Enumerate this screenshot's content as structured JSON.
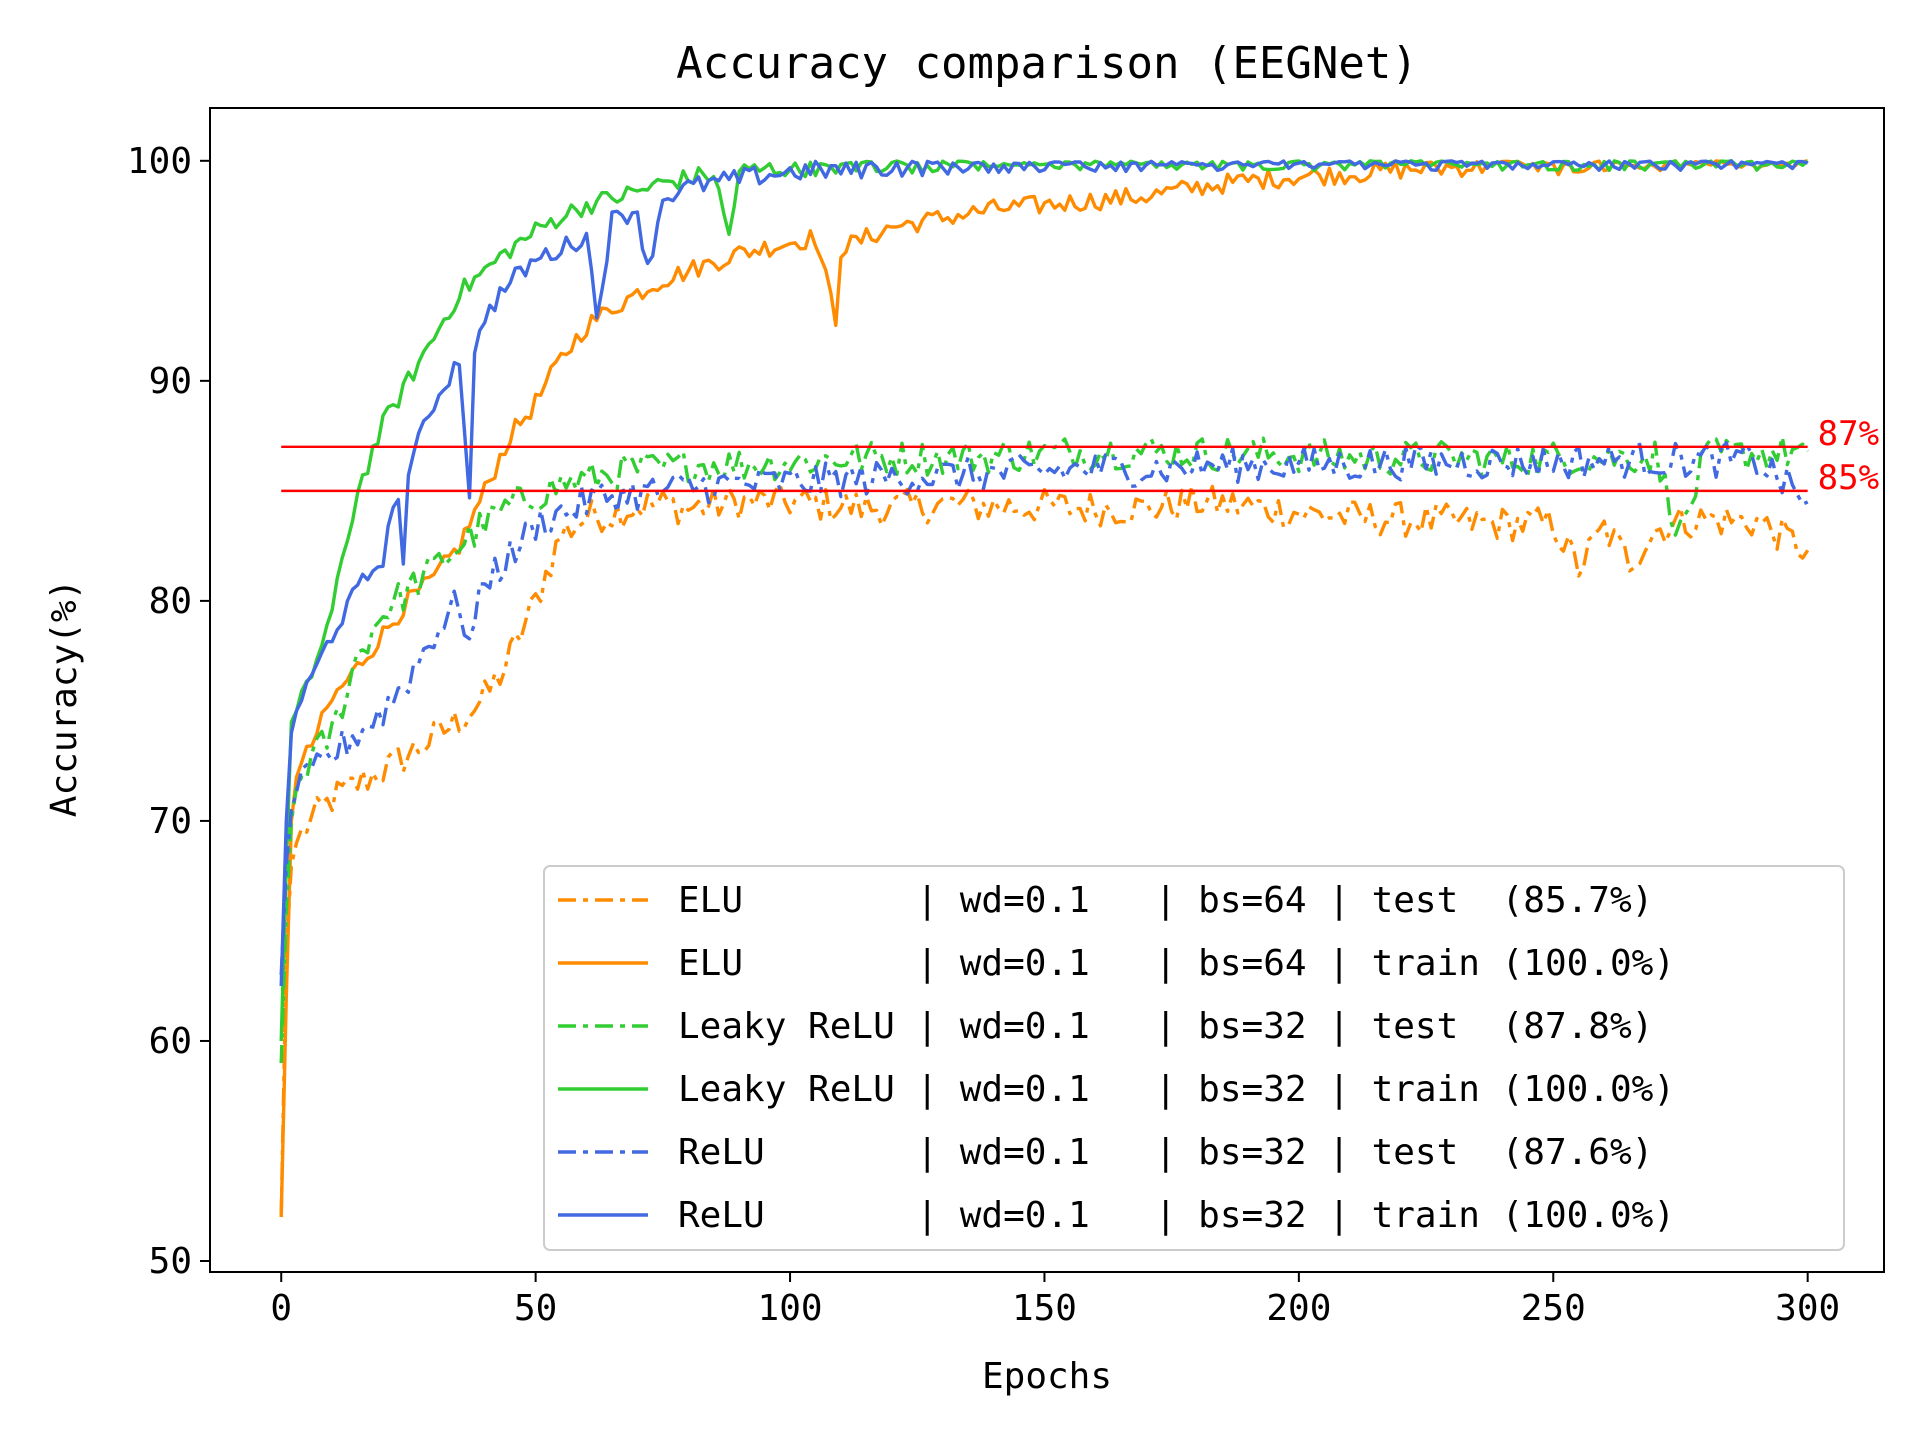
{
  "chart_data": {
    "type": "line",
    "title": "Accuracy comparison (EEGNet)",
    "xlabel": "Epochs",
    "ylabel": "Accuracy(%)",
    "xlim": [
      -14,
      315
    ],
    "ylim": [
      49.5,
      102.4
    ],
    "x_ticks": [
      0,
      50,
      100,
      150,
      200,
      250,
      300
    ],
    "y_ticks": [
      50,
      60,
      70,
      80,
      90,
      100
    ],
    "grid": false,
    "legend_position": "lower-right",
    "reference_lines": [
      {
        "y": 87,
        "label": "87%",
        "color": "#ff0000"
      },
      {
        "y": 85,
        "label": "85%",
        "color": "#ff0000"
      }
    ],
    "series": [
      {
        "name": "ELU        | wd=0.1   | bs=64 | test  (85.7%)",
        "color": "#ff8c00",
        "dash": "dashdot",
        "points": [
          [
            0,
            52
          ],
          [
            1,
            64
          ],
          [
            2,
            68
          ],
          [
            3,
            69
          ],
          [
            5,
            69.8
          ],
          [
            8,
            70.5
          ],
          [
            10,
            71
          ],
          [
            15,
            71.7
          ],
          [
            20,
            72.3
          ],
          [
            25,
            73
          ],
          [
            30,
            73.8
          ],
          [
            35,
            74.6
          ],
          [
            40,
            75.6
          ],
          [
            44,
            77
          ],
          [
            48,
            79
          ],
          [
            50,
            80
          ],
          [
            55,
            83
          ],
          [
            60,
            83.8
          ],
          [
            65,
            84
          ],
          [
            70,
            84.3
          ],
          [
            75,
            84.4
          ],
          [
            80,
            84.2
          ],
          [
            90,
            84.5
          ],
          [
            100,
            84.5
          ],
          [
            110,
            84.3
          ],
          [
            120,
            84.2
          ],
          [
            130,
            84.4
          ],
          [
            140,
            84.3
          ],
          [
            150,
            84.3
          ],
          [
            160,
            84.2
          ],
          [
            170,
            84.2
          ],
          [
            180,
            84.5
          ],
          [
            190,
            84.3
          ],
          [
            200,
            84
          ],
          [
            210,
            83.8
          ],
          [
            220,
            83.7
          ],
          [
            230,
            83.6
          ],
          [
            240,
            83.5
          ],
          [
            250,
            83.5
          ],
          [
            255,
            81.5
          ],
          [
            260,
            83.3
          ],
          [
            265,
            81.8
          ],
          [
            270,
            83.2
          ],
          [
            275,
            83.6
          ],
          [
            280,
            83.7
          ],
          [
            290,
            83.6
          ],
          [
            300,
            82.3
          ]
        ]
      },
      {
        "name": "ELU        | wd=0.1   | bs=64 | train (100.0%)",
        "color": "#ff8c00",
        "dash": "solid",
        "points": [
          [
            0,
            52
          ],
          [
            1,
            62
          ],
          [
            2,
            70
          ],
          [
            3,
            72
          ],
          [
            5,
            73
          ],
          [
            10,
            75.5
          ],
          [
            15,
            77
          ],
          [
            20,
            78.5
          ],
          [
            25,
            80
          ],
          [
            30,
            81
          ],
          [
            35,
            82.5
          ],
          [
            40,
            85
          ],
          [
            45,
            87.5
          ],
          [
            50,
            89
          ],
          [
            55,
            91
          ],
          [
            60,
            92.5
          ],
          [
            65,
            93.3
          ],
          [
            70,
            94
          ],
          [
            75,
            94.6
          ],
          [
            80,
            95
          ],
          [
            90,
            95.8
          ],
          [
            100,
            96.3
          ],
          [
            105,
            96.5
          ],
          [
            109,
            92.8
          ],
          [
            110,
            96
          ],
          [
            120,
            97
          ],
          [
            130,
            97.4
          ],
          [
            140,
            97.8
          ],
          [
            150,
            98
          ],
          [
            160,
            98.2
          ],
          [
            170,
            98.4
          ],
          [
            180,
            98.8
          ],
          [
            190,
            99.1
          ],
          [
            200,
            99.3
          ],
          [
            210,
            99.4
          ],
          [
            220,
            99.6
          ],
          [
            230,
            99.7
          ],
          [
            240,
            99.8
          ],
          [
            250,
            99.8
          ],
          [
            260,
            99.8
          ],
          [
            270,
            99.9
          ],
          [
            280,
            99.9
          ],
          [
            290,
            99.9
          ],
          [
            300,
            100
          ]
        ]
      },
      {
        "name": "Leaky ReLU | wd=0.1   | bs=32 | test  (87.8%)",
        "color": "#32cd32",
        "dash": "dashdot",
        "points": [
          [
            0,
            59
          ],
          [
            1,
            66
          ],
          [
            2,
            70
          ],
          [
            3,
            71.5
          ],
          [
            5,
            72.5
          ],
          [
            10,
            74
          ],
          [
            15,
            77.5
          ],
          [
            20,
            79.5
          ],
          [
            25,
            80.5
          ],
          [
            30,
            81.5
          ],
          [
            35,
            82.5
          ],
          [
            40,
            83.5
          ],
          [
            45,
            84.3
          ],
          [
            50,
            84.8
          ],
          [
            55,
            85.3
          ],
          [
            60,
            85.5
          ],
          [
            65,
            85.8
          ],
          [
            70,
            86
          ],
          [
            75,
            86
          ],
          [
            80,
            86.2
          ],
          [
            90,
            86.2
          ],
          [
            100,
            86.3
          ],
          [
            110,
            86.5
          ],
          [
            120,
            86.5
          ],
          [
            130,
            86.5
          ],
          [
            140,
            86.6
          ],
          [
            150,
            86.7
          ],
          [
            160,
            86.8
          ],
          [
            170,
            86.8
          ],
          [
            180,
            86.7
          ],
          [
            190,
            86.7
          ],
          [
            200,
            86.6
          ],
          [
            210,
            86.5
          ],
          [
            220,
            86.5
          ],
          [
            230,
            86.5
          ],
          [
            240,
            86.4
          ],
          [
            250,
            86.5
          ],
          [
            260,
            86.5
          ],
          [
            270,
            86.6
          ],
          [
            275,
            83
          ],
          [
            280,
            86.6
          ],
          [
            290,
            86.7
          ],
          [
            300,
            86.8
          ]
        ]
      },
      {
        "name": "Leaky ReLU | wd=0.1   | bs=32 | train (100.0%)",
        "color": "#32cd32",
        "dash": "solid",
        "points": [
          [
            0,
            60
          ],
          [
            1,
            68
          ],
          [
            2,
            74.5
          ],
          [
            3,
            75
          ],
          [
            5,
            76
          ],
          [
            10,
            79.5
          ],
          [
            15,
            85
          ],
          [
            20,
            88
          ],
          [
            25,
            90
          ],
          [
            30,
            92
          ],
          [
            35,
            94
          ],
          [
            40,
            95
          ],
          [
            45,
            96
          ],
          [
            50,
            96.8
          ],
          [
            55,
            97.5
          ],
          [
            60,
            98
          ],
          [
            65,
            98.3
          ],
          [
            70,
            98.6
          ],
          [
            75,
            99
          ],
          [
            80,
            99.2
          ],
          [
            85,
            99.4
          ],
          [
            88,
            96.6
          ],
          [
            90,
            99.5
          ],
          [
            100,
            99.7
          ],
          [
            110,
            99.8
          ],
          [
            120,
            99.9
          ],
          [
            130,
            99.9
          ],
          [
            140,
            100
          ],
          [
            150,
            100
          ],
          [
            160,
            100
          ],
          [
            170,
            100
          ],
          [
            180,
            100
          ],
          [
            190,
            100
          ],
          [
            200,
            100
          ],
          [
            210,
            100
          ],
          [
            220,
            100
          ],
          [
            230,
            100
          ],
          [
            240,
            100
          ],
          [
            250,
            100
          ],
          [
            260,
            100
          ],
          [
            270,
            100
          ],
          [
            280,
            100
          ],
          [
            290,
            100
          ],
          [
            300,
            100
          ]
        ]
      },
      {
        "name": "ReLU       | wd=0.1   | bs=32 | test  (87.6%)",
        "color": "#4169e1",
        "dash": "dashdot",
        "points": [
          [
            0,
            63
          ],
          [
            1,
            68
          ],
          [
            2,
            70.5
          ],
          [
            3,
            71.3
          ],
          [
            5,
            71.8
          ],
          [
            10,
            73
          ],
          [
            15,
            74
          ],
          [
            20,
            75
          ],
          [
            25,
            76.5
          ],
          [
            30,
            78.5
          ],
          [
            35,
            80
          ],
          [
            37,
            78
          ],
          [
            40,
            81
          ],
          [
            45,
            82
          ],
          [
            50,
            83.5
          ],
          [
            55,
            84
          ],
          [
            60,
            84.5
          ],
          [
            65,
            84.8
          ],
          [
            70,
            84.9
          ],
          [
            75,
            85
          ],
          [
            80,
            85.2
          ],
          [
            90,
            85.3
          ],
          [
            100,
            85.4
          ],
          [
            110,
            85.5
          ],
          [
            120,
            85.6
          ],
          [
            130,
            85.7
          ],
          [
            140,
            85.8
          ],
          [
            150,
            85.9
          ],
          [
            160,
            86
          ],
          [
            170,
            86
          ],
          [
            180,
            86.1
          ],
          [
            190,
            86.2
          ],
          [
            200,
            86.2
          ],
          [
            210,
            86.2
          ],
          [
            220,
            86.3
          ],
          [
            230,
            86.3
          ],
          [
            240,
            86.3
          ],
          [
            250,
            86.3
          ],
          [
            260,
            86.4
          ],
          [
            270,
            86.4
          ],
          [
            280,
            86.4
          ],
          [
            290,
            86.4
          ],
          [
            300,
            84.5
          ]
        ]
      },
      {
        "name": "ReLU       | wd=0.1   | bs=32 | train (100.0%)",
        "color": "#4169e1",
        "dash": "solid",
        "points": [
          [
            0,
            62.5
          ],
          [
            1,
            70
          ],
          [
            2,
            74
          ],
          [
            3,
            75
          ],
          [
            5,
            76
          ],
          [
            10,
            78.5
          ],
          [
            15,
            80.5
          ],
          [
            20,
            82
          ],
          [
            23,
            85
          ],
          [
            24,
            81.5
          ],
          [
            25,
            86
          ],
          [
            30,
            89
          ],
          [
            35,
            91
          ],
          [
            37,
            85
          ],
          [
            38,
            91
          ],
          [
            40,
            93
          ],
          [
            45,
            94.5
          ],
          [
            50,
            95.5
          ],
          [
            55,
            96
          ],
          [
            60,
            96.6
          ],
          [
            62,
            93
          ],
          [
            65,
            97.3
          ],
          [
            70,
            97.8
          ],
          [
            72,
            95
          ],
          [
            75,
            98.3
          ],
          [
            80,
            98.8
          ],
          [
            90,
            99.2
          ],
          [
            100,
            99.5
          ],
          [
            110,
            99.6
          ],
          [
            120,
            99.7
          ],
          [
            130,
            99.8
          ],
          [
            140,
            99.9
          ],
          [
            150,
            99.9
          ],
          [
            160,
            99.9
          ],
          [
            170,
            100
          ],
          [
            180,
            100
          ],
          [
            190,
            100
          ],
          [
            200,
            100
          ],
          [
            210,
            100
          ],
          [
            220,
            100
          ],
          [
            230,
            100
          ],
          [
            240,
            100
          ],
          [
            250,
            100
          ],
          [
            260,
            100
          ],
          [
            270,
            100
          ],
          [
            280,
            100
          ],
          [
            290,
            100
          ],
          [
            300,
            99.9
          ]
        ]
      }
    ]
  }
}
